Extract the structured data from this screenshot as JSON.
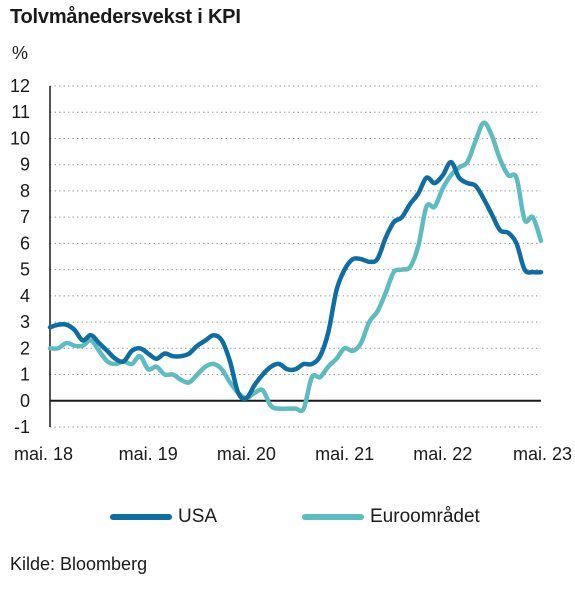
{
  "title": "Tolvmånedersvekst i KPI",
  "unit": "%",
  "source": "Kilde: Bloomberg",
  "chart_data": {
    "type": "line",
    "title": "Tolvmånedersvekst i KPI",
    "ylabel": "%",
    "ylim": [
      -1,
      12
    ],
    "yticks": [
      -1,
      0,
      1,
      2,
      3,
      4,
      5,
      6,
      7,
      8,
      9,
      10,
      11,
      12
    ],
    "xlim": [
      "2018-05",
      "2023-05"
    ],
    "xtick_labels": [
      "mai. 18",
      "mai. 19",
      "mai. 20",
      "mai. 21",
      "mai. 22",
      "mai. 23"
    ],
    "xtick_values": [
      "2018-05",
      "2019-05",
      "2020-05",
      "2021-05",
      "2022-05",
      "2023-05"
    ],
    "grid": "horizontal dotted",
    "legend_position": "bottom",
    "series": [
      {
        "name": "USA",
        "color": "#0e6ea3",
        "x": [
          "2018-05",
          "2018-06",
          "2018-07",
          "2018-08",
          "2018-09",
          "2018-10",
          "2018-11",
          "2018-12",
          "2019-01",
          "2019-02",
          "2019-03",
          "2019-04",
          "2019-05",
          "2019-06",
          "2019-07",
          "2019-08",
          "2019-09",
          "2019-10",
          "2019-11",
          "2019-12",
          "2020-01",
          "2020-02",
          "2020-03",
          "2020-04",
          "2020-05",
          "2020-06",
          "2020-07",
          "2020-08",
          "2020-09",
          "2020-10",
          "2020-11",
          "2020-12",
          "2021-01",
          "2021-02",
          "2021-03",
          "2021-04",
          "2021-05",
          "2021-06",
          "2021-07",
          "2021-08",
          "2021-09",
          "2021-10",
          "2021-11",
          "2021-12",
          "2022-01",
          "2022-02",
          "2022-03",
          "2022-04",
          "2022-05",
          "2022-06",
          "2022-07",
          "2022-08",
          "2022-09",
          "2022-10",
          "2022-11",
          "2022-12",
          "2023-01",
          "2023-02",
          "2023-03",
          "2023-04",
          "2023-05"
        ],
        "values": [
          2.8,
          2.9,
          2.9,
          2.7,
          2.3,
          2.5,
          2.2,
          1.9,
          1.6,
          1.5,
          1.9,
          2.0,
          1.8,
          1.6,
          1.8,
          1.7,
          1.7,
          1.8,
          2.1,
          2.3,
          2.5,
          2.3,
          1.5,
          0.3,
          0.1,
          0.6,
          1.0,
          1.3,
          1.4,
          1.2,
          1.2,
          1.4,
          1.4,
          1.7,
          2.6,
          4.2,
          5.0,
          5.4,
          5.4,
          5.3,
          5.4,
          6.2,
          6.8,
          7.0,
          7.5,
          7.9,
          8.5,
          8.3,
          8.6,
          9.1,
          8.5,
          8.3,
          8.2,
          7.7,
          7.1,
          6.5,
          6.4,
          6.0,
          5.0,
          4.9,
          4.9
        ]
      },
      {
        "name": "Euroområdet",
        "color": "#5cbcbf",
        "x": [
          "2018-05",
          "2018-06",
          "2018-07",
          "2018-08",
          "2018-09",
          "2018-10",
          "2018-11",
          "2018-12",
          "2019-01",
          "2019-02",
          "2019-03",
          "2019-04",
          "2019-05",
          "2019-06",
          "2019-07",
          "2019-08",
          "2019-09",
          "2019-10",
          "2019-11",
          "2019-12",
          "2020-01",
          "2020-02",
          "2020-03",
          "2020-04",
          "2020-05",
          "2020-06",
          "2020-07",
          "2020-08",
          "2020-09",
          "2020-10",
          "2020-11",
          "2020-12",
          "2021-01",
          "2021-02",
          "2021-03",
          "2021-04",
          "2021-05",
          "2021-06",
          "2021-07",
          "2021-08",
          "2021-09",
          "2021-10",
          "2021-11",
          "2021-12",
          "2022-01",
          "2022-02",
          "2022-03",
          "2022-04",
          "2022-05",
          "2022-06",
          "2022-07",
          "2022-08",
          "2022-09",
          "2022-10",
          "2022-11",
          "2022-12",
          "2023-01",
          "2023-02",
          "2023-03",
          "2023-04",
          "2023-05"
        ],
        "values": [
          2.0,
          2.0,
          2.2,
          2.1,
          2.1,
          2.3,
          1.9,
          1.5,
          1.4,
          1.5,
          1.4,
          1.7,
          1.2,
          1.3,
          1.0,
          1.0,
          0.8,
          0.7,
          1.0,
          1.3,
          1.4,
          1.2,
          0.7,
          0.3,
          0.1,
          0.3,
          0.4,
          -0.2,
          -0.3,
          -0.3,
          -0.3,
          -0.3,
          0.9,
          0.9,
          1.3,
          1.6,
          2.0,
          1.9,
          2.2,
          3.0,
          3.4,
          4.1,
          4.9,
          5.0,
          5.1,
          5.9,
          7.4,
          7.4,
          8.1,
          8.6,
          8.9,
          9.1,
          9.9,
          10.6,
          10.1,
          9.2,
          8.6,
          8.5,
          6.9,
          7.0,
          6.1
        ]
      }
    ]
  }
}
